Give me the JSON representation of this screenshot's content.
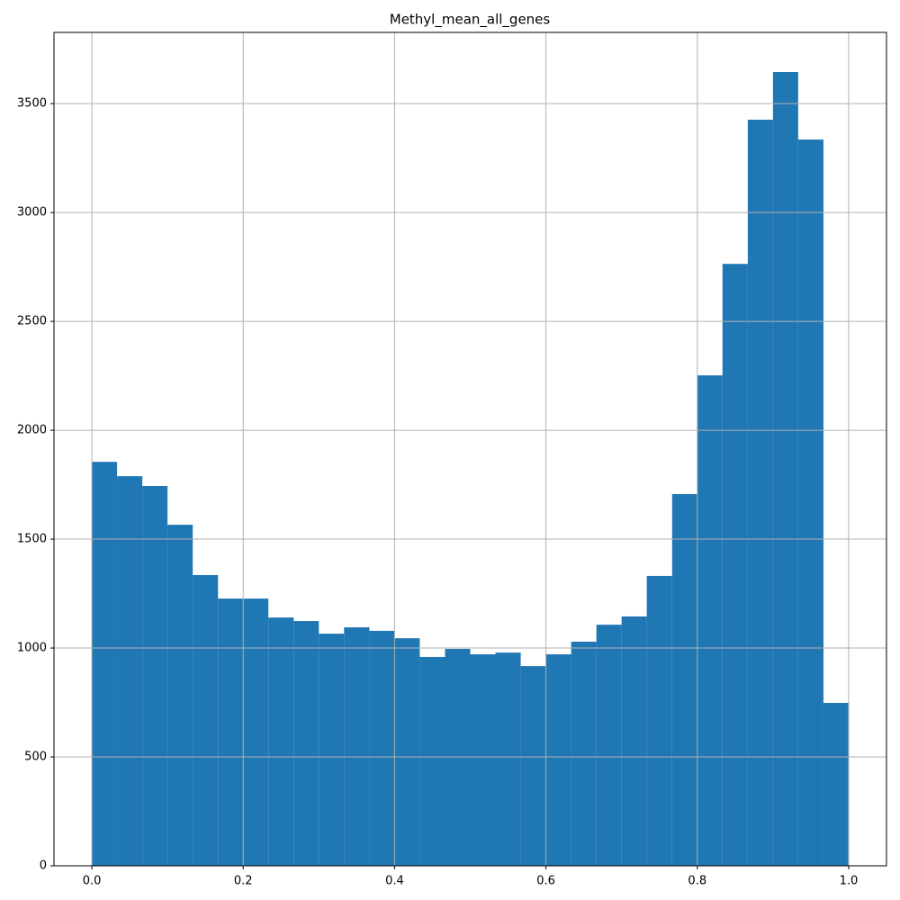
{
  "chart_data": {
    "type": "histogram",
    "title": "Methyl_mean_all_genes",
    "bins": [
      0,
      0.0333,
      0.0667,
      0.1,
      0.1333,
      0.1667,
      0.2,
      0.2333,
      0.2667,
      0.3,
      0.3333,
      0.3667,
      0.4,
      0.4333,
      0.4667,
      0.5,
      0.5333,
      0.5667,
      0.6,
      0.6333,
      0.6667,
      0.7,
      0.7333,
      0.7667,
      0.8,
      0.8333,
      0.8667,
      0.9,
      0.9333,
      0.9667,
      1
    ],
    "values": [
      1855,
      1789,
      1744,
      1566,
      1335,
      1227,
      1227,
      1140,
      1124,
      1066,
      1095,
      1079,
      1045,
      959,
      996,
      971,
      979,
      917,
      971,
      1029,
      1107,
      1145,
      1331,
      1707,
      2252,
      2764,
      3426,
      3645,
      3335,
      748
    ],
    "color": "#1f77b4",
    "xlim": [
      -0.05,
      1.05
    ],
    "xticks": [
      {
        "value": 0,
        "label": "0.0"
      },
      {
        "value": 0.2,
        "label": "0.2"
      },
      {
        "value": 0.4,
        "label": "0.4"
      },
      {
        "value": 0.6,
        "label": "0.6"
      },
      {
        "value": 0.8,
        "label": "0.8"
      },
      {
        "value": 1,
        "label": "1.0"
      }
    ],
    "ylim": [
      0,
      3827
    ],
    "yticks": [
      0,
      500,
      1000,
      1500,
      2000,
      2500,
      3000,
      3500
    ],
    "grid": true
  }
}
